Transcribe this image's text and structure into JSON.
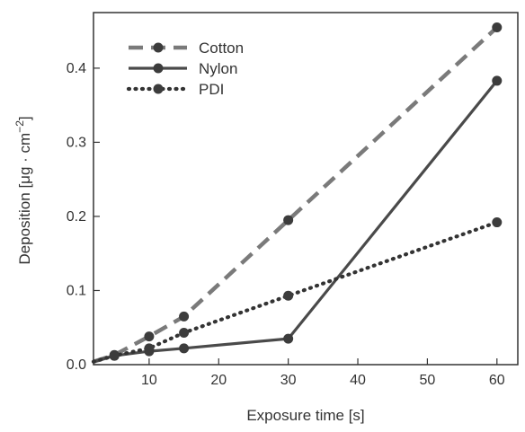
{
  "chart_data": {
    "type": "line",
    "title": "",
    "xlabel": "Exposure time [s]",
    "ylabel_text": "Deposition [μg · cm",
    "ylabel_exponent": "−2",
    "ylabel_close": "]",
    "xlim": [
      2,
      63
    ],
    "ylim": [
      0,
      0.475
    ],
    "xticks": [
      10,
      20,
      30,
      40,
      50,
      60
    ],
    "yticks": [
      0.0,
      0.1,
      0.2,
      0.3,
      0.4
    ],
    "ytick_labels": [
      "0.0",
      "0.1",
      "0.2",
      "0.3",
      "0.4"
    ],
    "grid": false,
    "legend_position": "top-left",
    "series": [
      {
        "name": "Cotton",
        "style": "dashed",
        "color": "#7a7a7a",
        "x": [
          2,
          5,
          10,
          15,
          30,
          60
        ],
        "y": [
          0.004,
          0.013,
          0.038,
          0.065,
          0.195,
          0.455
        ]
      },
      {
        "name": "Nylon",
        "style": "solid",
        "color": "#4a4a4a",
        "x": [
          2,
          5,
          10,
          15,
          30,
          60
        ],
        "y": [
          0.004,
          0.012,
          0.018,
          0.022,
          0.035,
          0.383
        ]
      },
      {
        "name": "PDI",
        "style": "dotted",
        "color": "#333333",
        "x": [
          2,
          5,
          10,
          15,
          30,
          60
        ],
        "y": [
          0.004,
          0.012,
          0.022,
          0.043,
          0.093,
          0.192
        ]
      }
    ]
  }
}
